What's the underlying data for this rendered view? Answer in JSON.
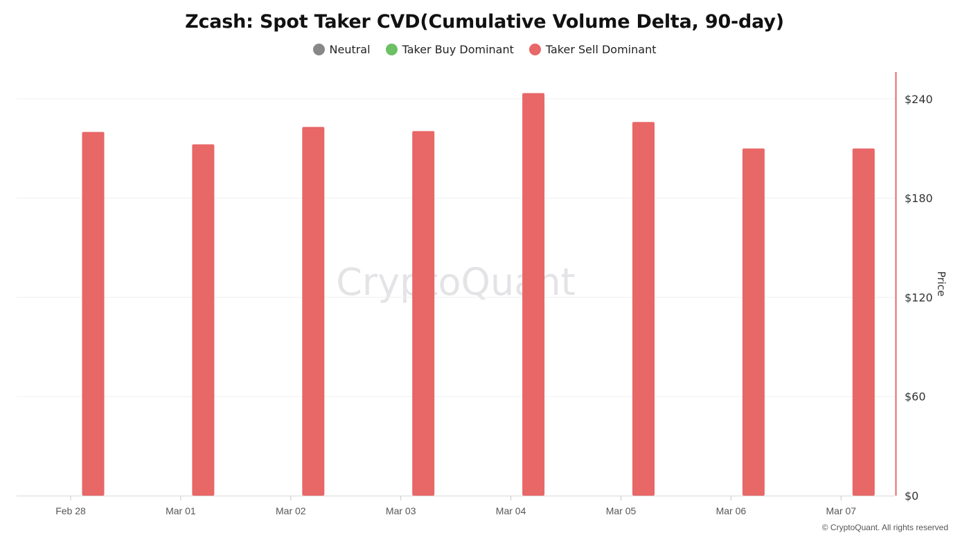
{
  "chart_data": {
    "type": "bar",
    "title": "Zcash: Spot Taker CVD(Cumulative Volume Delta, 90-day)",
    "legend": [
      {
        "name": "Neutral",
        "color": "#888888"
      },
      {
        "name": "Taker Buy Dominant",
        "color": "#6dc064"
      },
      {
        "name": "Taker Sell Dominant",
        "color": "#e86767"
      }
    ],
    "legend_position": "top-center",
    "categories": [
      "Feb 28",
      "Mar 01",
      "Mar 02",
      "Mar 03",
      "Mar 04",
      "Mar 05",
      "Mar 06",
      "Mar 07"
    ],
    "series": [
      {
        "name": "Taker Sell Dominant",
        "color": "#e86767",
        "values": [
          220,
          212.5,
          223,
          220.5,
          243.5,
          226,
          210,
          210
        ]
      }
    ],
    "y_axis": {
      "label": "Price",
      "position": "right",
      "ticks": [
        "$0",
        "$60",
        "$120",
        "$180",
        "$240"
      ],
      "tick_values": [
        0,
        60,
        120,
        180,
        240
      ],
      "range": [
        0,
        256
      ]
    },
    "grid": true
  },
  "watermark": "CryptoQuant",
  "copyright": "© CryptoQuant. All rights reserved"
}
